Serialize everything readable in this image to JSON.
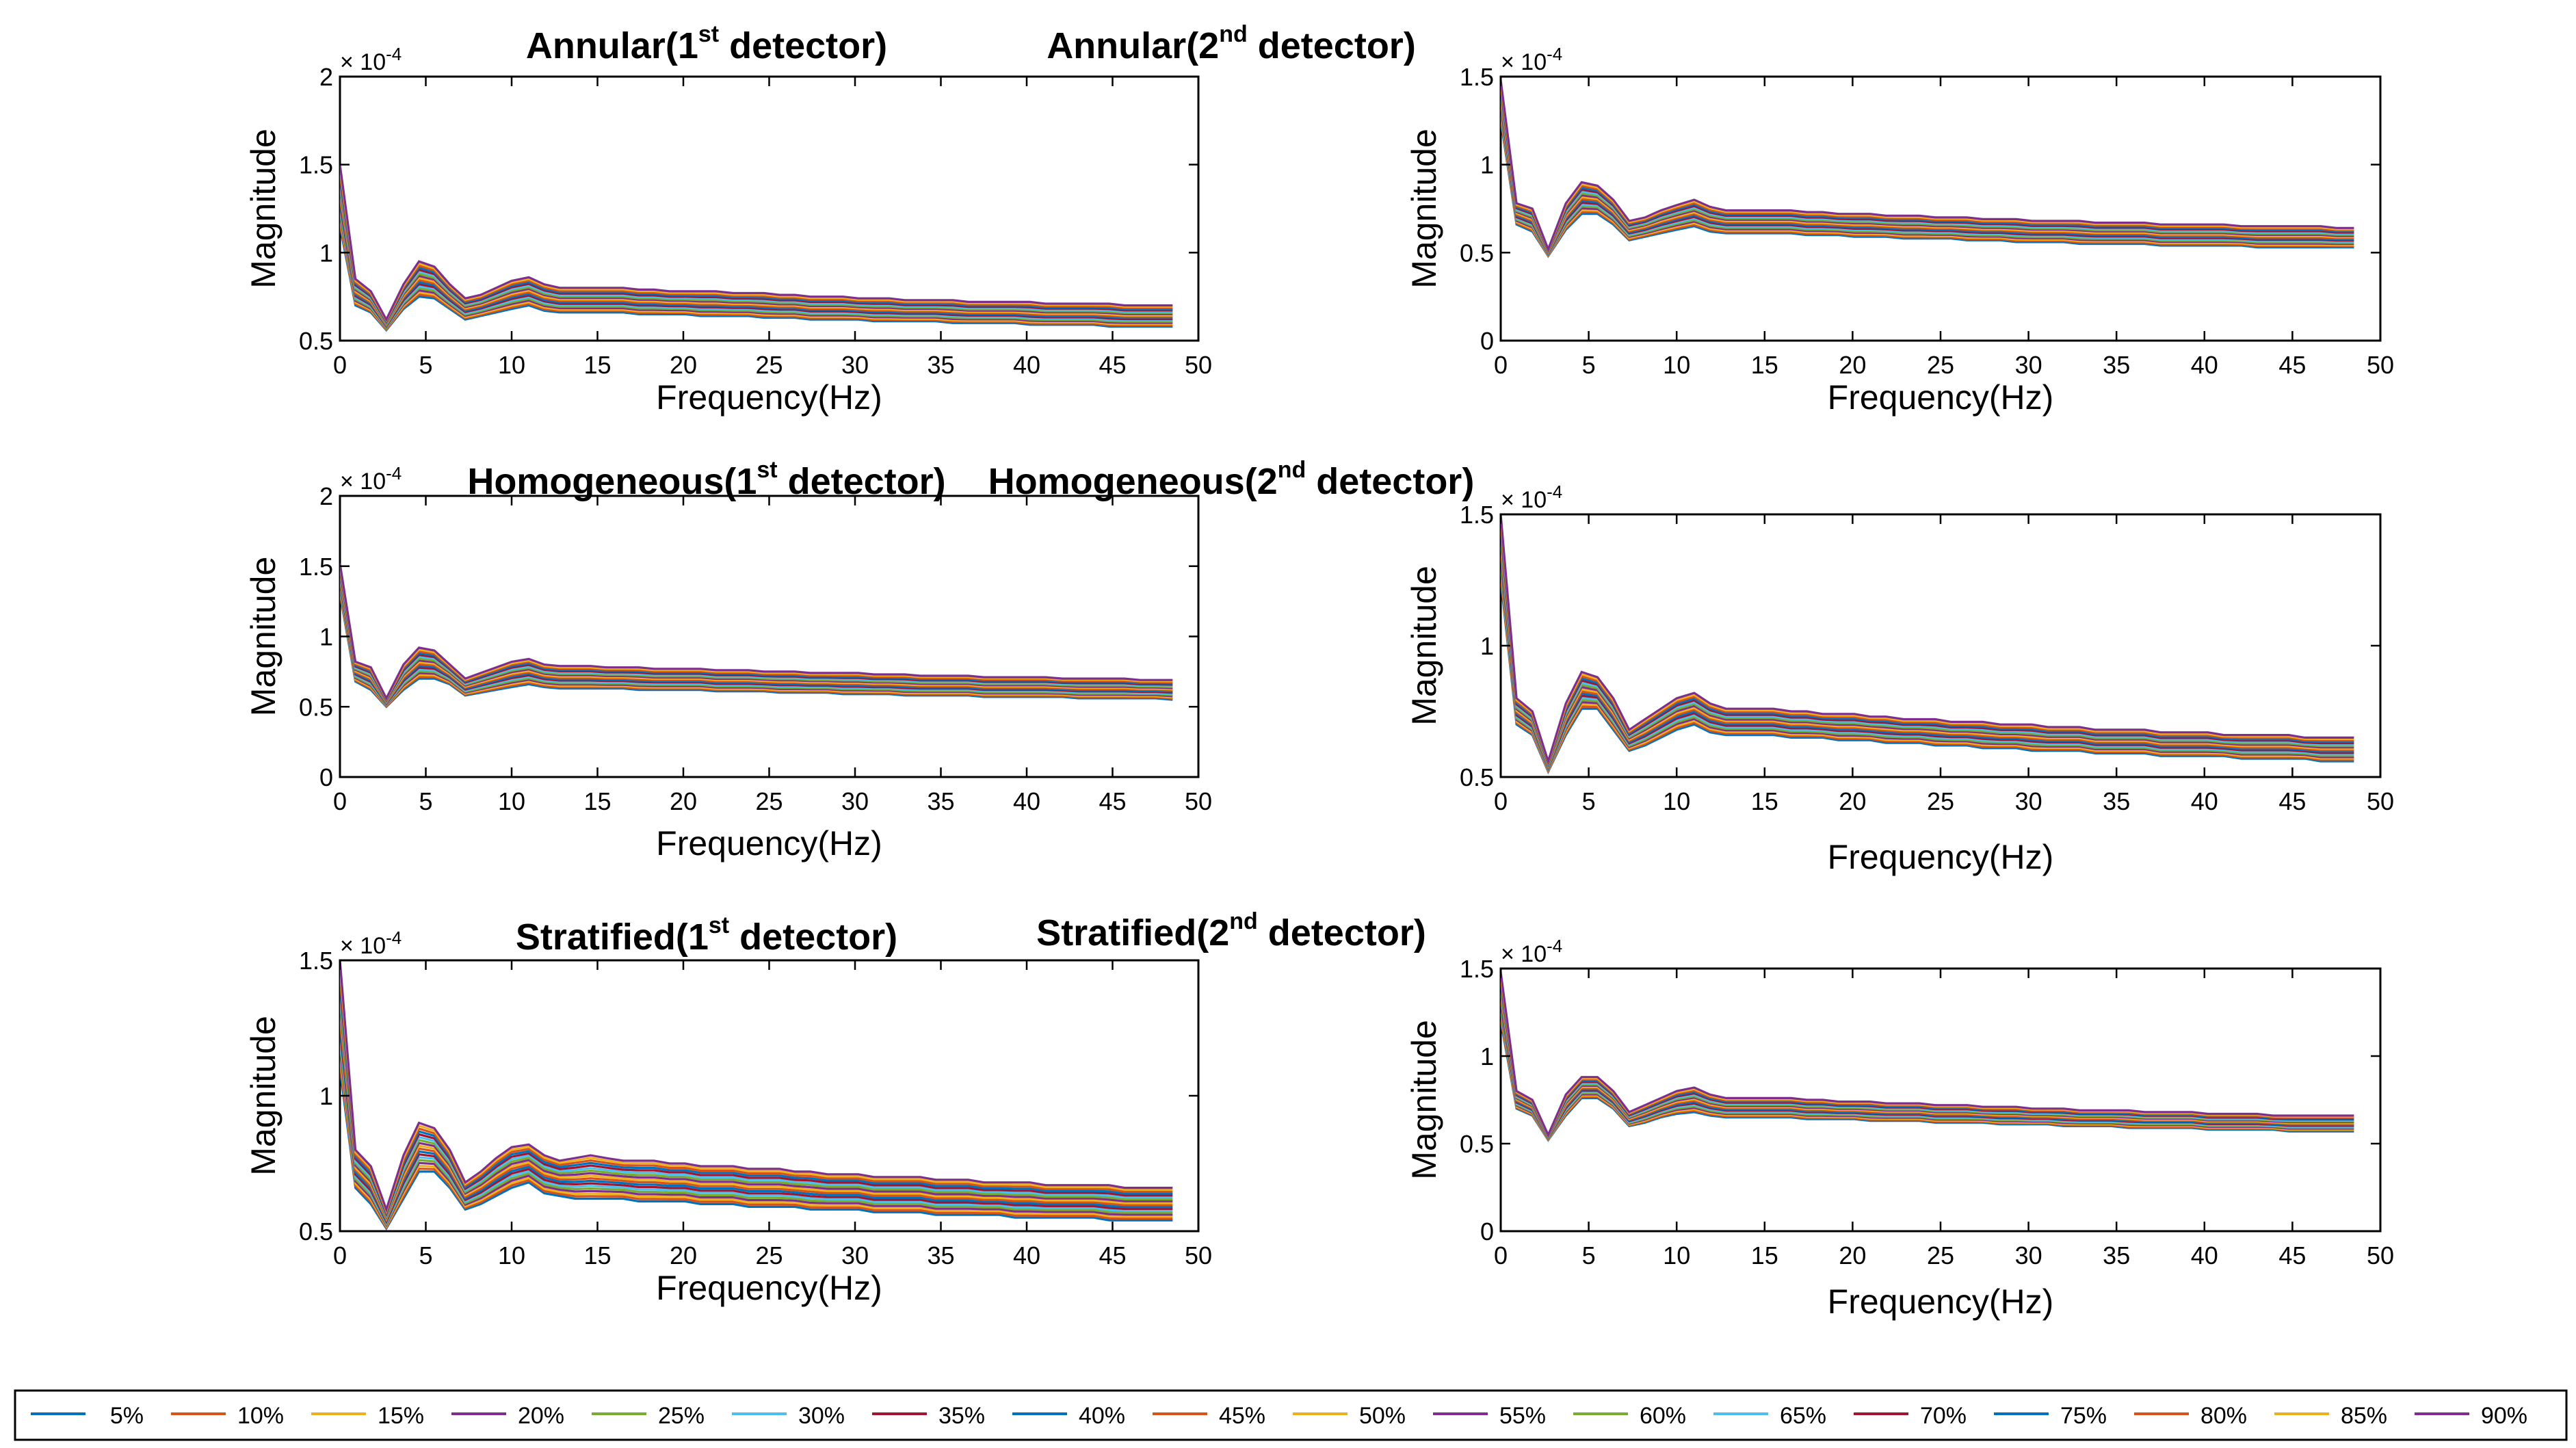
{
  "figure": {
    "description_hidden": false
  },
  "legend": {
    "entries": [
      "5%",
      "10%",
      "15%",
      "20%",
      "25%",
      "30%",
      "35%",
      "40%",
      "45%",
      "50%",
      "55%",
      "60%",
      "65%",
      "70%",
      "75%",
      "80%",
      "85%",
      "90%"
    ]
  },
  "palette": [
    "#0072BD",
    "#D95319",
    "#EDB120",
    "#7E2F8E",
    "#77AC30",
    "#4DBEEE",
    "#A2142F"
  ],
  "chart_data": [
    {
      "type": "line",
      "title_main": "Annular(1",
      "title_sup": "st",
      "title_tail": " detector)",
      "xlabel": "Frequency(Hz)",
      "ylabel": "Magnitude",
      "exponent_label": "× 10",
      "exponent_power": "-4",
      "xlim": [
        0,
        50
      ],
      "ylim": [
        0.5,
        2
      ],
      "xticks": [
        0,
        5,
        10,
        15,
        20,
        25,
        30,
        35,
        40,
        45,
        50
      ],
      "yticks": [
        0.5,
        1,
        1.5,
        2
      ],
      "ytick_labels": [
        "0.5",
        "1",
        "1.5",
        "2"
      ],
      "x": [
        0,
        0.9,
        1.8,
        2.7,
        3.7,
        4.6,
        5.5,
        6.4,
        7.3,
        8.2,
        9.1,
        10,
        11,
        11.9,
        12.8,
        13.7,
        14.6,
        15.5,
        16.5,
        17.4,
        18.3,
        19.2,
        20.1,
        21,
        21.9,
        22.9,
        23.8,
        24.7,
        25.6,
        26.5,
        27.4,
        28.4,
        29.3,
        30.2,
        31.1,
        32,
        32.9,
        33.8,
        34.7,
        35.7,
        36.6,
        37.5,
        38.4,
        39.3,
        40.2,
        41.1,
        42.1,
        43,
        43.9,
        44.8,
        45.7,
        46.6,
        47.5,
        48.5
      ],
      "series_base": {
        "low": [
          1.15,
          0.7,
          0.66,
          0.56,
          0.68,
          0.75,
          0.74,
          0.68,
          0.62,
          0.64,
          0.66,
          0.68,
          0.7,
          0.67,
          0.66,
          0.66,
          0.66,
          0.66,
          0.66,
          0.65,
          0.65,
          0.65,
          0.65,
          0.64,
          0.64,
          0.64,
          0.64,
          0.63,
          0.63,
          0.63,
          0.62,
          0.62,
          0.62,
          0.62,
          0.61,
          0.61,
          0.61,
          0.61,
          0.61,
          0.6,
          0.6,
          0.6,
          0.6,
          0.6,
          0.59,
          0.59,
          0.59,
          0.59,
          0.59,
          0.58,
          0.58,
          0.58,
          0.58,
          0.58
        ],
        "high": [
          1.5,
          0.85,
          0.78,
          0.62,
          0.82,
          0.95,
          0.92,
          0.82,
          0.74,
          0.76,
          0.8,
          0.84,
          0.86,
          0.82,
          0.8,
          0.8,
          0.8,
          0.8,
          0.8,
          0.79,
          0.79,
          0.78,
          0.78,
          0.78,
          0.78,
          0.77,
          0.77,
          0.77,
          0.76,
          0.76,
          0.75,
          0.75,
          0.75,
          0.74,
          0.74,
          0.74,
          0.73,
          0.73,
          0.73,
          0.73,
          0.72,
          0.72,
          0.72,
          0.72,
          0.72,
          0.71,
          0.71,
          0.71,
          0.71,
          0.71,
          0.7,
          0.7,
          0.7,
          0.7
        ]
      }
    },
    {
      "type": "line",
      "title_main": "Annular(2",
      "title_sup": "nd",
      "title_tail": " detector)",
      "xlabel": "Frequency(Hz)",
      "ylabel": "Magnitude",
      "exponent_label": "× 10",
      "exponent_power": "-4",
      "xlim": [
        0,
        50
      ],
      "ylim": [
        0,
        1.5
      ],
      "xticks": [
        0,
        5,
        10,
        15,
        20,
        25,
        30,
        35,
        40,
        45,
        50
      ],
      "yticks": [
        0,
        0.5,
        1,
        1.5
      ],
      "ytick_labels": [
        "0",
        "0.5",
        "1",
        "1.5"
      ],
      "x": [
        0,
        0.9,
        1.8,
        2.7,
        3.7,
        4.6,
        5.5,
        6.4,
        7.3,
        8.2,
        9.1,
        10,
        11,
        11.9,
        12.8,
        13.7,
        14.6,
        15.5,
        16.5,
        17.4,
        18.3,
        19.2,
        20.1,
        21,
        21.9,
        22.9,
        23.8,
        24.7,
        25.6,
        26.5,
        27.4,
        28.4,
        29.3,
        30.2,
        31.1,
        32,
        32.9,
        33.8,
        34.7,
        35.7,
        36.6,
        37.5,
        38.4,
        39.3,
        40.2,
        41.1,
        42.1,
        43,
        43.9,
        44.8,
        45.7,
        46.6,
        47.5,
        48.5
      ],
      "series_base": {
        "low": [
          1.25,
          0.66,
          0.62,
          0.48,
          0.63,
          0.72,
          0.72,
          0.66,
          0.57,
          0.59,
          0.61,
          0.63,
          0.65,
          0.62,
          0.61,
          0.61,
          0.61,
          0.61,
          0.61,
          0.6,
          0.6,
          0.6,
          0.59,
          0.59,
          0.59,
          0.58,
          0.58,
          0.58,
          0.58,
          0.57,
          0.57,
          0.57,
          0.56,
          0.56,
          0.56,
          0.56,
          0.55,
          0.55,
          0.55,
          0.55,
          0.55,
          0.54,
          0.54,
          0.54,
          0.54,
          0.54,
          0.54,
          0.53,
          0.53,
          0.53,
          0.53,
          0.53,
          0.53,
          0.53
        ],
        "high": [
          1.48,
          0.78,
          0.75,
          0.52,
          0.78,
          0.9,
          0.88,
          0.8,
          0.68,
          0.7,
          0.74,
          0.77,
          0.8,
          0.76,
          0.74,
          0.74,
          0.74,
          0.74,
          0.74,
          0.73,
          0.73,
          0.72,
          0.72,
          0.72,
          0.71,
          0.71,
          0.71,
          0.7,
          0.7,
          0.7,
          0.69,
          0.69,
          0.69,
          0.68,
          0.68,
          0.68,
          0.68,
          0.67,
          0.67,
          0.67,
          0.67,
          0.66,
          0.66,
          0.66,
          0.66,
          0.66,
          0.65,
          0.65,
          0.65,
          0.65,
          0.65,
          0.65,
          0.64,
          0.64
        ]
      }
    },
    {
      "type": "line",
      "title_main": "Homogeneous(1",
      "title_sup": "st",
      "title_tail": " detector)",
      "xlabel": "Frequency(Hz)",
      "ylabel": "Magnitude",
      "exponent_label": "× 10",
      "exponent_power": "-4",
      "xlim": [
        0,
        50
      ],
      "ylim": [
        0,
        2
      ],
      "xticks": [
        0,
        5,
        10,
        15,
        20,
        25,
        30,
        35,
        40,
        45,
        50
      ],
      "yticks": [
        0,
        0.5,
        1,
        1.5,
        2
      ],
      "ytick_labels": [
        "0",
        "0.5",
        "1",
        "1.5",
        "2"
      ],
      "x": [
        0,
        0.9,
        1.8,
        2.7,
        3.7,
        4.6,
        5.5,
        6.4,
        7.3,
        8.2,
        9.1,
        10,
        11,
        11.9,
        12.8,
        13.7,
        14.6,
        15.5,
        16.5,
        17.4,
        18.3,
        19.2,
        20.1,
        21,
        21.9,
        22.9,
        23.8,
        24.7,
        25.6,
        26.5,
        27.4,
        28.4,
        29.3,
        30.2,
        31.1,
        32,
        32.9,
        33.8,
        34.7,
        35.7,
        36.6,
        37.5,
        38.4,
        39.3,
        40.2,
        41.1,
        42.1,
        43,
        43.9,
        44.8,
        45.7,
        46.6,
        47.5,
        48.5
      ],
      "series_base": {
        "low": [
          1.3,
          0.68,
          0.62,
          0.5,
          0.62,
          0.7,
          0.7,
          0.66,
          0.58,
          0.6,
          0.62,
          0.64,
          0.66,
          0.64,
          0.63,
          0.63,
          0.63,
          0.63,
          0.63,
          0.62,
          0.62,
          0.62,
          0.62,
          0.62,
          0.61,
          0.61,
          0.61,
          0.61,
          0.6,
          0.6,
          0.6,
          0.6,
          0.59,
          0.59,
          0.59,
          0.59,
          0.58,
          0.58,
          0.58,
          0.58,
          0.58,
          0.57,
          0.57,
          0.57,
          0.57,
          0.57,
          0.57,
          0.56,
          0.56,
          0.56,
          0.56,
          0.56,
          0.56,
          0.55
        ],
        "high": [
          1.52,
          0.82,
          0.78,
          0.56,
          0.8,
          0.92,
          0.9,
          0.8,
          0.7,
          0.74,
          0.78,
          0.82,
          0.84,
          0.8,
          0.79,
          0.79,
          0.79,
          0.78,
          0.78,
          0.78,
          0.77,
          0.77,
          0.77,
          0.77,
          0.76,
          0.76,
          0.76,
          0.75,
          0.75,
          0.75,
          0.74,
          0.74,
          0.74,
          0.74,
          0.73,
          0.73,
          0.73,
          0.72,
          0.72,
          0.72,
          0.72,
          0.71,
          0.71,
          0.71,
          0.71,
          0.71,
          0.7,
          0.7,
          0.7,
          0.7,
          0.7,
          0.69,
          0.69,
          0.69
        ]
      }
    },
    {
      "type": "line",
      "title_main": "Homogeneous(2",
      "title_sup": "nd",
      "title_tail": " detector)",
      "xlabel": "Frequency(Hz)",
      "ylabel": "Magnitude",
      "exponent_label": "× 10",
      "exponent_power": "-4",
      "xlim": [
        0,
        50
      ],
      "ylim": [
        0.5,
        1.5
      ],
      "xticks": [
        0,
        5,
        10,
        15,
        20,
        25,
        30,
        35,
        40,
        45,
        50
      ],
      "yticks": [
        0.5,
        1,
        1.5
      ],
      "ytick_labels": [
        "0.5",
        "1",
        "1.5"
      ],
      "x": [
        0,
        0.9,
        1.8,
        2.7,
        3.7,
        4.6,
        5.5,
        6.4,
        7.3,
        8.2,
        9.1,
        10,
        11,
        11.9,
        12.8,
        13.7,
        14.6,
        15.5,
        16.5,
        17.4,
        18.3,
        19.2,
        20.1,
        21,
        21.9,
        22.9,
        23.8,
        24.7,
        25.6,
        26.5,
        27.4,
        28.4,
        29.3,
        30.2,
        31.1,
        32,
        32.9,
        33.8,
        34.7,
        35.7,
        36.6,
        37.5,
        38.4,
        39.3,
        40.2,
        41.1,
        42.1,
        43,
        43.9,
        44.8,
        45.7,
        46.6,
        47.5,
        48.5
      ],
      "series_base": {
        "low": [
          1.25,
          0.7,
          0.66,
          0.52,
          0.66,
          0.76,
          0.76,
          0.68,
          0.6,
          0.62,
          0.65,
          0.68,
          0.7,
          0.67,
          0.66,
          0.66,
          0.66,
          0.66,
          0.65,
          0.65,
          0.65,
          0.64,
          0.64,
          0.64,
          0.63,
          0.63,
          0.63,
          0.62,
          0.62,
          0.62,
          0.61,
          0.61,
          0.61,
          0.6,
          0.6,
          0.6,
          0.6,
          0.59,
          0.59,
          0.59,
          0.59,
          0.58,
          0.58,
          0.58,
          0.58,
          0.58,
          0.57,
          0.57,
          0.57,
          0.57,
          0.57,
          0.56,
          0.56,
          0.56
        ],
        "high": [
          1.5,
          0.8,
          0.75,
          0.56,
          0.78,
          0.9,
          0.88,
          0.8,
          0.68,
          0.72,
          0.76,
          0.8,
          0.82,
          0.78,
          0.76,
          0.76,
          0.76,
          0.76,
          0.75,
          0.75,
          0.74,
          0.74,
          0.74,
          0.73,
          0.73,
          0.72,
          0.72,
          0.72,
          0.71,
          0.71,
          0.71,
          0.7,
          0.7,
          0.7,
          0.69,
          0.69,
          0.69,
          0.68,
          0.68,
          0.68,
          0.68,
          0.67,
          0.67,
          0.67,
          0.67,
          0.66,
          0.66,
          0.66,
          0.66,
          0.66,
          0.65,
          0.65,
          0.65,
          0.65
        ]
      }
    },
    {
      "type": "line",
      "title_main": "Stratified(1",
      "title_sup": "st",
      "title_tail": " detector)",
      "xlabel": "Frequency(Hz)",
      "ylabel": "Magnitude",
      "exponent_label": "× 10",
      "exponent_power": "-4",
      "xlim": [
        0,
        50
      ],
      "ylim": [
        0.5,
        1.5
      ],
      "xticks": [
        0,
        5,
        10,
        15,
        20,
        25,
        30,
        35,
        40,
        45,
        50
      ],
      "yticks": [
        0.5,
        1,
        1.5
      ],
      "ytick_labels": [
        "0.5",
        "1",
        "1.5"
      ],
      "x": [
        0,
        0.9,
        1.8,
        2.7,
        3.7,
        4.6,
        5.5,
        6.4,
        7.3,
        8.2,
        9.1,
        10,
        11,
        11.9,
        12.8,
        13.7,
        14.6,
        15.5,
        16.5,
        17.4,
        18.3,
        19.2,
        20.1,
        21,
        21.9,
        22.9,
        23.8,
        24.7,
        25.6,
        26.5,
        27.4,
        28.4,
        29.3,
        30.2,
        31.1,
        32,
        32.9,
        33.8,
        34.7,
        35.7,
        36.6,
        37.5,
        38.4,
        39.3,
        40.2,
        41.1,
        42.1,
        43,
        43.9,
        44.8,
        45.7,
        46.6,
        47.5,
        48.5
      ],
      "series_base": {
        "low": [
          1.1,
          0.66,
          0.6,
          0.51,
          0.62,
          0.72,
          0.72,
          0.66,
          0.58,
          0.6,
          0.63,
          0.66,
          0.68,
          0.64,
          0.63,
          0.62,
          0.62,
          0.62,
          0.62,
          0.61,
          0.61,
          0.61,
          0.61,
          0.6,
          0.6,
          0.6,
          0.59,
          0.59,
          0.59,
          0.59,
          0.58,
          0.58,
          0.58,
          0.58,
          0.57,
          0.57,
          0.57,
          0.57,
          0.56,
          0.56,
          0.56,
          0.56,
          0.56,
          0.55,
          0.55,
          0.55,
          0.55,
          0.55,
          0.55,
          0.54,
          0.54,
          0.54,
          0.54,
          0.54
        ],
        "high": [
          1.5,
          0.8,
          0.74,
          0.58,
          0.78,
          0.9,
          0.88,
          0.8,
          0.68,
          0.72,
          0.77,
          0.81,
          0.82,
          0.78,
          0.76,
          0.77,
          0.78,
          0.77,
          0.76,
          0.76,
          0.76,
          0.75,
          0.75,
          0.74,
          0.74,
          0.74,
          0.73,
          0.73,
          0.73,
          0.72,
          0.72,
          0.71,
          0.71,
          0.71,
          0.7,
          0.7,
          0.7,
          0.7,
          0.69,
          0.69,
          0.69,
          0.68,
          0.68,
          0.68,
          0.68,
          0.67,
          0.67,
          0.67,
          0.67,
          0.67,
          0.66,
          0.66,
          0.66,
          0.66
        ]
      }
    },
    {
      "type": "line",
      "title_main": "Stratified(2",
      "title_sup": "nd",
      "title_tail": " detector)",
      "xlabel": "Frequency(Hz)",
      "ylabel": "Magnitude",
      "exponent_label": "× 10",
      "exponent_power": "-4",
      "xlim": [
        0,
        50
      ],
      "ylim": [
        0,
        1.5
      ],
      "xticks": [
        0,
        5,
        10,
        15,
        20,
        25,
        30,
        35,
        40,
        45,
        50
      ],
      "yticks": [
        0,
        0.5,
        1,
        1.5
      ],
      "ytick_labels": [
        "0",
        "0.5",
        "1",
        "1.5"
      ],
      "x": [
        0,
        0.9,
        1.8,
        2.7,
        3.7,
        4.6,
        5.5,
        6.4,
        7.3,
        8.2,
        9.1,
        10,
        11,
        11.9,
        12.8,
        13.7,
        14.6,
        15.5,
        16.5,
        17.4,
        18.3,
        19.2,
        20.1,
        21,
        21.9,
        22.9,
        23.8,
        24.7,
        25.6,
        26.5,
        27.4,
        28.4,
        29.3,
        30.2,
        31.1,
        32,
        32.9,
        33.8,
        34.7,
        35.7,
        36.6,
        37.5,
        38.4,
        39.3,
        40.2,
        41.1,
        42.1,
        43,
        43.9,
        44.8,
        45.7,
        46.6,
        47.5,
        48.5
      ],
      "series_base": {
        "low": [
          1.2,
          0.7,
          0.66,
          0.52,
          0.66,
          0.76,
          0.76,
          0.7,
          0.6,
          0.62,
          0.65,
          0.67,
          0.68,
          0.66,
          0.65,
          0.65,
          0.65,
          0.65,
          0.65,
          0.64,
          0.64,
          0.64,
          0.64,
          0.63,
          0.63,
          0.63,
          0.63,
          0.62,
          0.62,
          0.62,
          0.62,
          0.61,
          0.61,
          0.61,
          0.61,
          0.6,
          0.6,
          0.6,
          0.6,
          0.59,
          0.59,
          0.59,
          0.59,
          0.59,
          0.58,
          0.58,
          0.58,
          0.58,
          0.58,
          0.57,
          0.57,
          0.57,
          0.57,
          0.57
        ],
        "high": [
          1.48,
          0.8,
          0.75,
          0.55,
          0.78,
          0.88,
          0.88,
          0.8,
          0.68,
          0.72,
          0.76,
          0.8,
          0.82,
          0.78,
          0.76,
          0.76,
          0.76,
          0.76,
          0.76,
          0.75,
          0.75,
          0.74,
          0.74,
          0.74,
          0.73,
          0.73,
          0.73,
          0.72,
          0.72,
          0.72,
          0.71,
          0.71,
          0.71,
          0.7,
          0.7,
          0.7,
          0.69,
          0.69,
          0.69,
          0.69,
          0.68,
          0.68,
          0.68,
          0.68,
          0.67,
          0.67,
          0.67,
          0.67,
          0.66,
          0.66,
          0.66,
          0.66,
          0.66,
          0.66
        ]
      }
    }
  ]
}
